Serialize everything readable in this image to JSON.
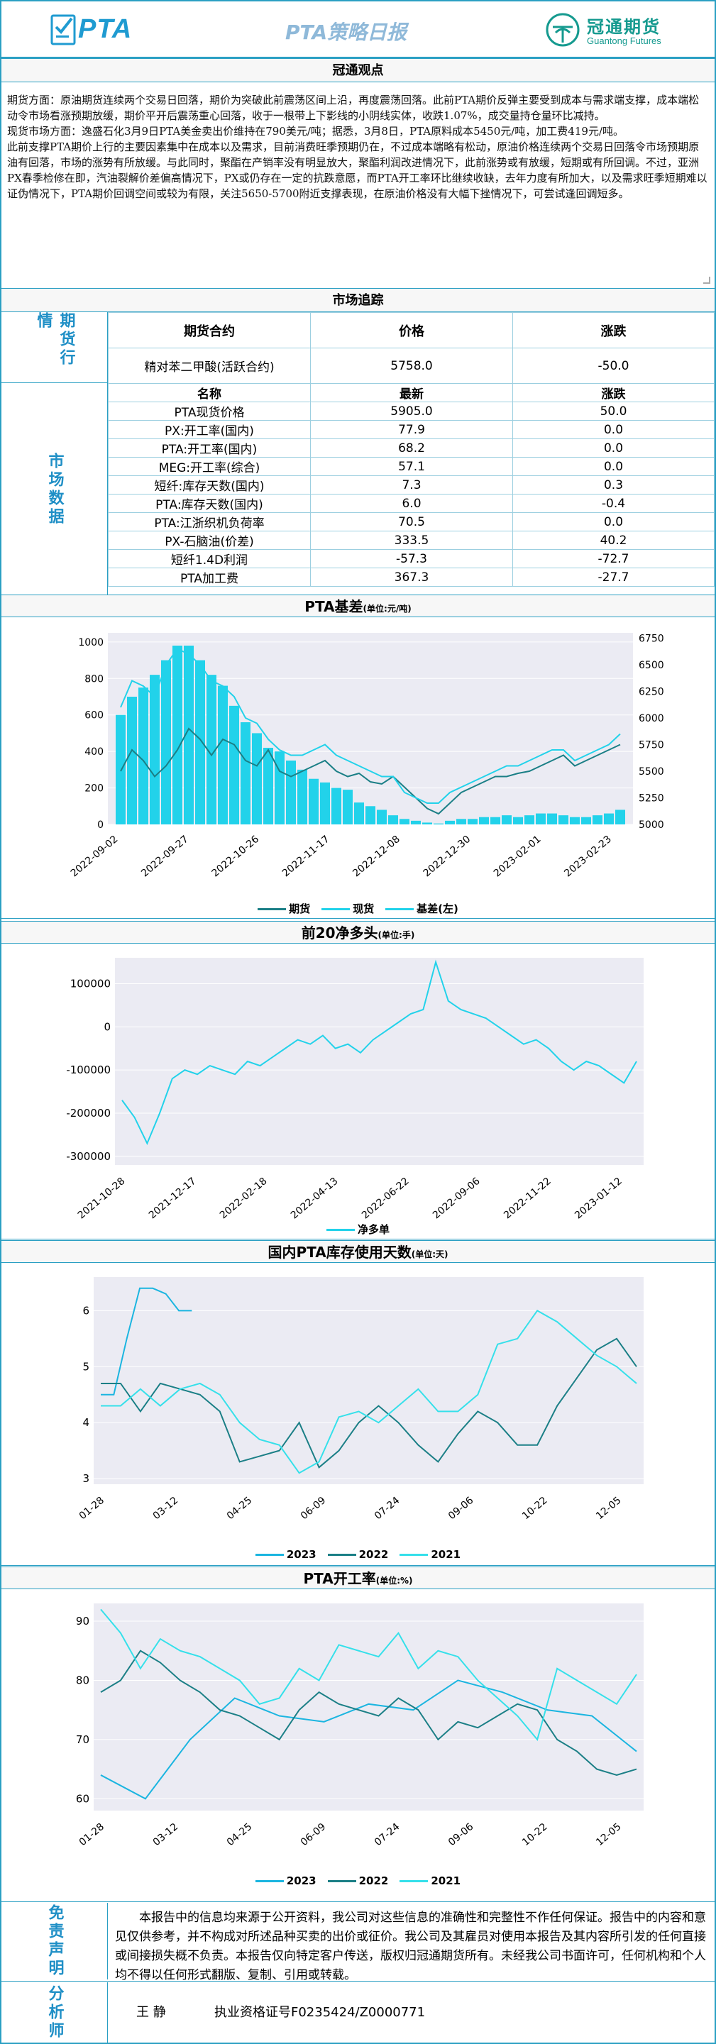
{
  "header": {
    "logo_text": "PTA",
    "title": "PTA策略日报",
    "brand_cn": "冠通期货",
    "brand_en": "Guantong Futures"
  },
  "view": {
    "title": "冠通观点",
    "paragraphs": [
      "期货方面：原油期货连续两个交易日回落，期价为突破此前震荡区间上沿，再度震荡回落。此前PTA期价反弹主要受到成本与需求端支撑，成本端松动令市场看涨预期放缓，期价平开后震荡重心回落，收于一根带上下影线的小阴线实体，收跌1.07%，成交量持仓量环比减持。",
      "现货市场方面：逸盛石化3月9日PTA美金卖出价维持在790美元/吨；据悉，3月8日，PTA原料成本5450元/吨，加工费419元/吨。",
      "此前支撑PTA期价上行的主要因素集中在成本以及需求，目前消费旺季预期仍在，不过成本端略有松动，原油价格连续两个交易日回落令市场预期原油有回落，市场的涨势有所放缓。与此同时，聚酯在产销率没有明显放大，聚酯利润改进情况下，此前涨势或有放缓，短期或有所回调。不过，亚洲PX春季检修在即，汽油裂解价差偏高情况下，PX或仍存在一定的抗跌意愿，而PTA开工率环比继续收缺，去年力度有所加大，以及需求旺季短期难以证伪情况下，PTA期价回调空间或较为有限，关注5650-5700附近支撑表现，在原油价格没有大幅下挫情况下，可尝试逢回调短多。"
    ]
  },
  "market": {
    "title": "市场追踪",
    "futures_label": "期货行情",
    "futures_headers": [
      "期货合约",
      "价格",
      "涨跌"
    ],
    "futures_rows": [
      [
        "精对苯二甲酸(活跃合约)",
        "5758.0",
        "-50.0"
      ]
    ],
    "data_label": "市场数据",
    "data_headers": [
      "名称",
      "最新",
      "涨跌"
    ],
    "data_rows": [
      [
        "PTA现货价格",
        "5905.0",
        "50.0"
      ],
      [
        "PX:开工率(国内)",
        "77.9",
        "0.0"
      ],
      [
        "PTA:开工率(国内)",
        "68.2",
        "0.0"
      ],
      [
        "MEG:开工率(综合)",
        "57.1",
        "0.0"
      ],
      [
        "短纤:库存天数(国内)",
        "7.3",
        "0.3"
      ],
      [
        "PTA:库存天数(国内)",
        "6.0",
        "-0.4"
      ],
      [
        "PTA:江浙织机负荷率",
        "70.5",
        "0.0"
      ],
      [
        "PX-石脑油(价差)",
        "333.5",
        "40.2"
      ],
      [
        "短纤1.4D利润",
        "-57.3",
        "-72.7"
      ],
      [
        "PTA加工费",
        "367.3",
        "-27.7"
      ]
    ]
  },
  "colors": {
    "accent": "#2a9fc3",
    "label_blue": "#1f8fc6",
    "brand": "#159a8f",
    "cyan_bar": "#22d2ea",
    "teal_line": "#1b7f86",
    "chart_bg": "#ebebf3"
  },
  "charts": [
    {
      "id": "basis",
      "title": "PTA基差",
      "unit": "(单位:元/吨)",
      "legend": [
        "期货",
        "现货",
        "基差(左)"
      ],
      "chart_data": {
        "type": "bar+line",
        "x_ticks": [
          "2022-09-02",
          "2022-09-27",
          "2022-10-26",
          "2022-11-17",
          "2022-12-08",
          "2022-12-30",
          "2023-02-01",
          "2023-02-23"
        ],
        "y_left_ticks": [
          "0",
          "200",
          "400",
          "600",
          "800",
          "1000"
        ],
        "y_right_ticks": [
          "5000",
          "5250",
          "5500",
          "5750",
          "6000",
          "6250",
          "6500",
          "6750"
        ],
        "ylim_left": [
          0,
          1050
        ],
        "ylim_right": [
          5000,
          6800
        ],
        "series": [
          {
            "name": "期货",
            "axis": "right",
            "values": [
              5500,
              5700,
              5600,
              5450,
              5550,
              5700,
              5900,
              5800,
              5650,
              5800,
              5750,
              5600,
              5550,
              5700,
              5500,
              5450,
              5500,
              5550,
              5600,
              5500,
              5450,
              5480,
              5400,
              5380,
              5450,
              5350,
              5250,
              5150,
              5100,
              5200,
              5300,
              5350,
              5400,
              5450,
              5450,
              5480,
              5500,
              5550,
              5600,
              5650,
              5550,
              5600,
              5650,
              5700,
              5750
            ]
          },
          {
            "name": "现货",
            "axis": "right",
            "values": [
              6100,
              6350,
              6300,
              6200,
              6500,
              6650,
              6600,
              6500,
              6350,
              6300,
              6200,
              6000,
              5950,
              5800,
              5700,
              5650,
              5650,
              5700,
              5750,
              5650,
              5600,
              5550,
              5500,
              5450,
              5450,
              5300,
              5250,
              5200,
              5200,
              5300,
              5350,
              5400,
              5450,
              5500,
              5550,
              5550,
              5600,
              5650,
              5700,
              5700,
              5600,
              5650,
              5700,
              5750,
              5850
            ]
          },
          {
            "name": "基差(左)",
            "axis": "left",
            "values": [
              600,
              700,
              750,
              820,
              900,
              980,
              980,
              900,
              820,
              760,
              650,
              560,
              500,
              420,
              400,
              350,
              300,
              250,
              230,
              200,
              190,
              120,
              100,
              80,
              50,
              30,
              20,
              10,
              5,
              20,
              30,
              30,
              40,
              40,
              50,
              40,
              50,
              60,
              60,
              50,
              40,
              40,
              50,
              60,
              80
            ]
          }
        ]
      }
    },
    {
      "id": "net-long",
      "title": "前20净多头",
      "unit": "(单位:手)",
      "legend": [
        "净多单"
      ],
      "chart_data": {
        "type": "line",
        "x_ticks": [
          "2021-10-28",
          "2021-12-17",
          "2022-02-18",
          "2022-04-13",
          "2022-06-22",
          "2022-09-06",
          "2022-11-22",
          "2023-01-12"
        ],
        "y_ticks": [
          "-300000",
          "-200000",
          "-100000",
          "0",
          "100000"
        ],
        "ylim": [
          -320000,
          160000
        ],
        "series": [
          {
            "name": "净多单",
            "values": [
              -170000,
              -210000,
              -270000,
              -200000,
              -120000,
              -100000,
              -110000,
              -90000,
              -100000,
              -110000,
              -80000,
              -90000,
              -70000,
              -50000,
              -30000,
              -40000,
              -20000,
              -50000,
              -40000,
              -60000,
              -30000,
              -10000,
              10000,
              30000,
              40000,
              150000,
              60000,
              40000,
              30000,
              20000,
              0,
              -20000,
              -40000,
              -30000,
              -50000,
              -80000,
              -100000,
              -80000,
              -90000,
              -110000,
              -130000,
              -80000
            ]
          }
        ]
      }
    },
    {
      "id": "inventory",
      "title": "国内PTA库存使用天数",
      "unit": "(单位:天)",
      "legend": [
        "2023",
        "2022",
        "2021"
      ],
      "chart_data": {
        "type": "line",
        "x_ticks": [
          "01-28",
          "03-12",
          "04-25",
          "06-09",
          "07-24",
          "09-06",
          "10-22",
          "12-05"
        ],
        "y_ticks": [
          "3",
          "4",
          "5",
          "6"
        ],
        "ylim": [
          2.9,
          6.6
        ],
        "series": [
          {
            "name": "2023",
            "values": [
              4.5,
              4.5,
              5.5,
              6.4,
              6.4,
              6.3,
              6.0,
              6.0
            ]
          },
          {
            "name": "2022",
            "values": [
              4.7,
              4.7,
              4.2,
              4.7,
              4.6,
              4.5,
              4.2,
              3.3,
              3.4,
              3.5,
              4.0,
              3.2,
              3.5,
              4.0,
              4.3,
              4.0,
              3.6,
              3.3,
              3.8,
              4.2,
              4.0,
              3.6,
              3.6,
              4.3,
              4.8,
              5.3,
              5.5,
              5.0
            ]
          },
          {
            "name": "2021",
            "values": [
              4.3,
              4.3,
              4.6,
              4.3,
              4.6,
              4.7,
              4.5,
              4.0,
              3.7,
              3.6,
              3.1,
              3.3,
              4.1,
              4.2,
              4.0,
              4.3,
              4.6,
              4.2,
              4.2,
              4.5,
              5.4,
              5.5,
              6.0,
              5.8,
              5.5,
              5.2,
              5.0,
              4.7
            ]
          }
        ]
      }
    },
    {
      "id": "operating-rate",
      "title": "PTA开工率",
      "unit": "(单位:%)",
      "legend": [
        "2023",
        "2022",
        "2021"
      ],
      "chart_data": {
        "type": "line",
        "x_ticks": [
          "01-28",
          "03-12",
          "04-25",
          "06-09",
          "07-24",
          "09-06",
          "10-22",
          "12-05"
        ],
        "y_ticks": [
          "60",
          "70",
          "80",
          "90"
        ],
        "ylim": [
          58,
          93
        ],
        "series": [
          {
            "name": "2023",
            "values": [
              64,
              60,
              70,
              77,
              74,
              73,
              76,
              75,
              80,
              78,
              75,
              74,
              68
            ]
          },
          {
            "name": "2022",
            "values": [
              78,
              80,
              85,
              83,
              80,
              78,
              75,
              74,
              72,
              70,
              75,
              78,
              76,
              75,
              74,
              77,
              75,
              70,
              73,
              72,
              74,
              76,
              75,
              70,
              68,
              65,
              64,
              65
            ]
          },
          {
            "name": "2021",
            "values": [
              92,
              88,
              82,
              87,
              85,
              84,
              82,
              80,
              76,
              77,
              82,
              80,
              86,
              85,
              84,
              88,
              82,
              85,
              84,
              80,
              77,
              74,
              70,
              82,
              80,
              78,
              76,
              81
            ]
          }
        ]
      }
    }
  ],
  "disclaimer": {
    "label": "免责声明",
    "text": "本报告中的信息均来源于公开资料，我公司对这些信息的准确性和完整性不作任何保证。报告中的内容和意见仅供参考，并不构成对所述品种买卖的出价或征价。我公司及其雇员对使用本报告及其内容所引发的任何直接或间接损失概不负责。本报告仅向特定客户传送，版权归冠通期货所有。未经我公司书面许可，任何机构和个人均不得以任何形式翻版、复制、引用或转载。"
  },
  "analyst": {
    "label": "分析师",
    "name": "王 静",
    "license": "执业资格证号F0235424/Z0000771"
  }
}
